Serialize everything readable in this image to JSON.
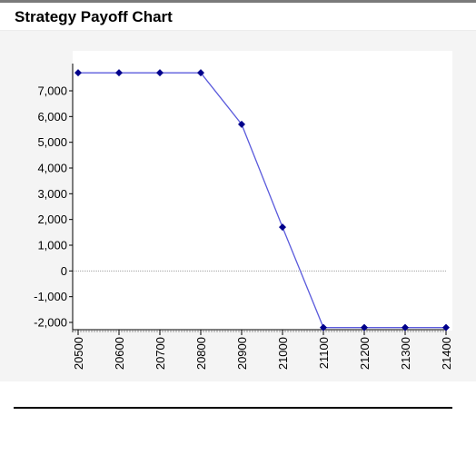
{
  "header": {
    "title": "Strategy Payoff Chart"
  },
  "colors": {
    "line": "#5b5bdc",
    "marker": "#00008b",
    "zero_line": "#a0a0a0",
    "axis": "#000000",
    "plot_bg": "#ffffff",
    "panel_bg": "#f4f4f4"
  },
  "chart_data": {
    "type": "line",
    "title": "Strategy Payoff Chart",
    "xlabel": "",
    "ylabel": "",
    "x": [
      20500,
      20600,
      20700,
      20800,
      20900,
      21000,
      21100,
      21200,
      21300,
      21400
    ],
    "series": [
      {
        "values": [
          7700,
          7700,
          7700,
          7700,
          5700,
          1700,
          -2200,
          -2200,
          -2200,
          -2200
        ]
      }
    ],
    "xticks": [
      "20500",
      "20600",
      "20700",
      "20800",
      "20900",
      "21000",
      "21100",
      "21200",
      "21300",
      "21400"
    ],
    "yticks": [
      "7,000",
      "6,000",
      "5,000",
      "4,000",
      "3,000",
      "2,000",
      "1,000",
      "0",
      "-1,000",
      "-2,000"
    ],
    "ytick_values": [
      7000,
      6000,
      5000,
      4000,
      3000,
      2000,
      1000,
      0,
      -1000,
      -2000
    ],
    "xlim": [
      20500,
      21400
    ],
    "ylim": [
      -2500,
      8500
    ],
    "zero_line": true,
    "grid": false,
    "legend": "none"
  }
}
